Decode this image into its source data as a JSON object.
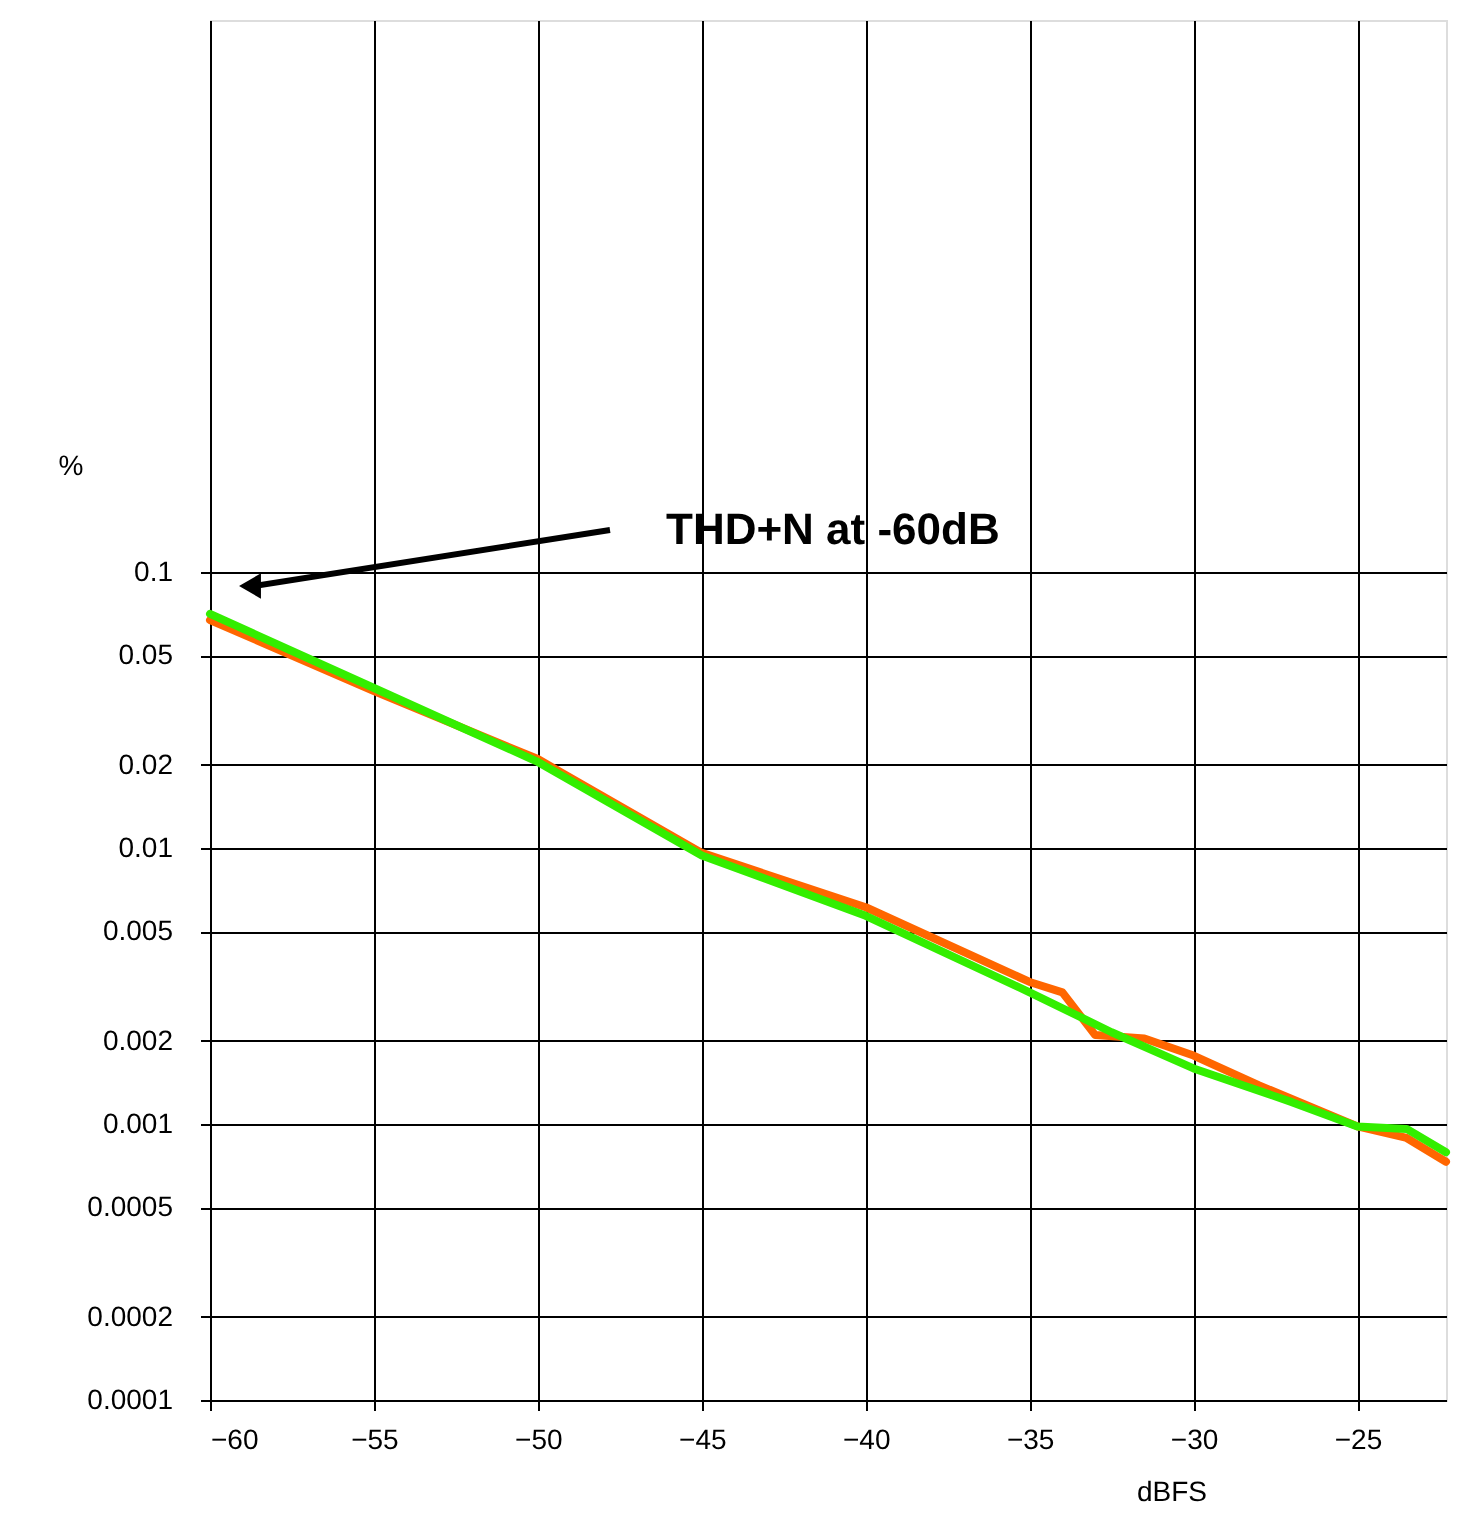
{
  "chart_data": {
    "type": "line",
    "xlabel": "dBFS",
    "ylabel": "%",
    "log": true,
    "x": [
      -60,
      -55,
      -50,
      -45,
      -40,
      -35,
      -32.5,
      -30,
      -27,
      -25,
      -23.5,
      -22.3
    ],
    "series": [
      {
        "color": "#ff6600",
        "x": [
          -60,
          -55,
          -50,
          -45,
          -40,
          -35,
          -34,
          -33,
          -31.5,
          -30,
          -28,
          -25,
          -23.5,
          -22.3
        ],
        "values": [
          0.067,
          0.037,
          0.021,
          0.0096,
          0.0061,
          0.00327,
          0.003,
          0.0021,
          0.00204,
          0.00177,
          0.00138,
          0.00098,
          0.00089,
          0.00073
        ]
      },
      {
        "color": "#33ee00",
        "values": [
          0.0705,
          0.038,
          0.0205,
          0.0094,
          0.00568,
          0.003,
          0.00215,
          0.00159,
          0.0012,
          0.00098,
          0.00096,
          0.00079
        ]
      }
    ],
    "xlim": [
      -60,
      -22.3
    ],
    "xticks": [
      -60,
      -55,
      -50,
      -45,
      -40,
      -35,
      -30,
      -25
    ],
    "ylim": [
      0.0001,
      10
    ],
    "yticks": [
      0.0001,
      0.0002,
      0.0005,
      0.001,
      0.002,
      0.005,
      0.01,
      0.02,
      0.05,
      0.1
    ],
    "grid": true,
    "marker": "none",
    "line_style": "solid",
    "annotations": [
      "THD+N at -60dB"
    ]
  }
}
